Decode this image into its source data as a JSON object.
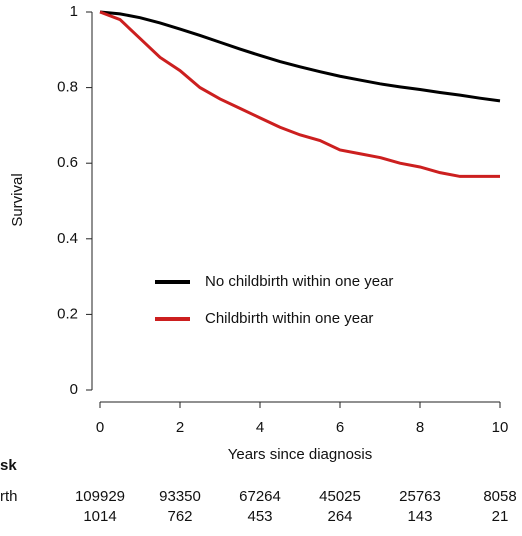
{
  "chart_data": {
    "type": "line",
    "x_label": "Years since diagnosis",
    "y_label": "Survival",
    "x": [
      0,
      0.5,
      1,
      1.5,
      2,
      2.5,
      3,
      3.5,
      4,
      4.5,
      5,
      5.5,
      6,
      6.5,
      7,
      7.5,
      8,
      8.5,
      9,
      9.5,
      10
    ],
    "series": [
      {
        "name": "No childbirth within one year",
        "color": "#000000",
        "values": [
          1,
          0.995,
          0.985,
          0.971,
          0.955,
          0.938,
          0.92,
          0.902,
          0.885,
          0.869,
          0.855,
          0.842,
          0.83,
          0.82,
          0.81,
          0.802,
          0.795,
          0.787,
          0.78,
          0.772,
          0.765
        ]
      },
      {
        "name": "Childbirth within one year",
        "color": "#cc1f1f",
        "values": [
          1,
          0.98,
          0.93,
          0.88,
          0.845,
          0.8,
          0.77,
          0.745,
          0.72,
          0.695,
          0.675,
          0.66,
          0.635,
          0.625,
          0.615,
          0.6,
          0.59,
          0.575,
          0.565,
          0.565,
          0.565
        ]
      }
    ],
    "xlim": [
      0,
      10
    ],
    "xticks": [
      0,
      2,
      4,
      6,
      8,
      10
    ],
    "ylim": [
      0,
      1
    ],
    "yticks": [
      0,
      0.2,
      0.4,
      0.6,
      0.8,
      1
    ],
    "risk_table": {
      "title": "sk",
      "rows": [
        {
          "label": "rth",
          "values": [
            109929,
            93350,
            67264,
            45025,
            25763,
            8058
          ]
        },
        {
          "values": [
            1014,
            762,
            453,
            264,
            143,
            21
          ]
        }
      ]
    }
  }
}
